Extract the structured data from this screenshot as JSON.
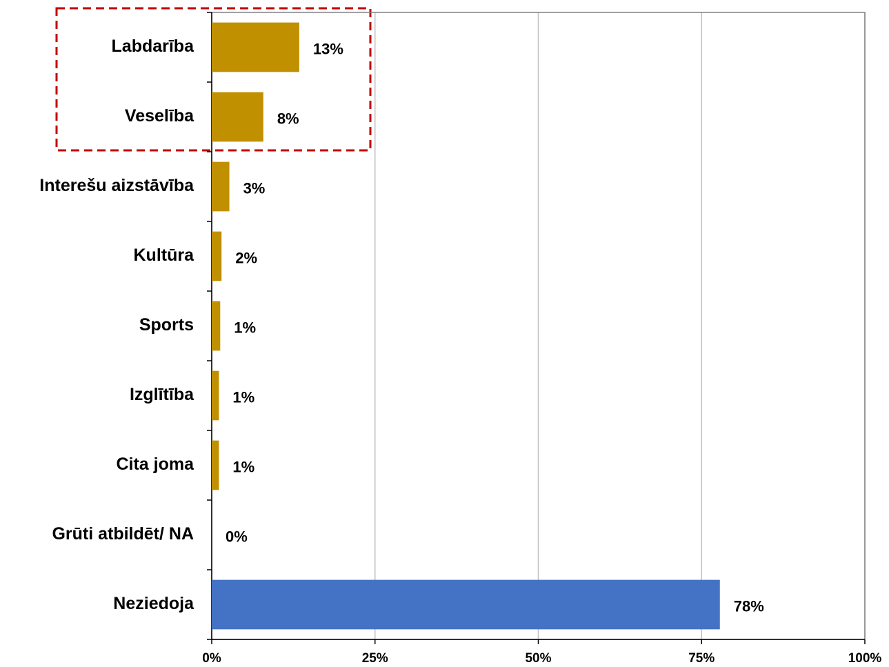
{
  "chart_data": {
    "type": "hbar",
    "categories": [
      "Labdarība",
      "Veselība",
      "Interešu aizstāvība",
      "Kultūra",
      "Sports",
      "Izglītība",
      "Cita joma",
      "Grūti atbildēt/ NA",
      "Neziedoja"
    ],
    "values": [
      13.4,
      7.9,
      2.7,
      1.5,
      1.3,
      1.1,
      1.1,
      0,
      77.8
    ],
    "value_labels": [
      "13%",
      "8%",
      "3%",
      "2%",
      "1%",
      "1%",
      "1%",
      "0%",
      "78%"
    ],
    "colors": [
      "#c09000",
      "#c09000",
      "#c09000",
      "#c09000",
      "#c09000",
      "#c09000",
      "#c09000",
      "#c09000",
      "#4472c4"
    ],
    "xlim": [
      0,
      100
    ],
    "xticks": [
      {
        "value": 0,
        "label": "0%"
      },
      {
        "value": 25,
        "label": "25%"
      },
      {
        "value": 50,
        "label": "50%"
      },
      {
        "value": 75,
        "label": "75%"
      },
      {
        "value": 100,
        "label": "100%"
      }
    ],
    "grid": true
  }
}
